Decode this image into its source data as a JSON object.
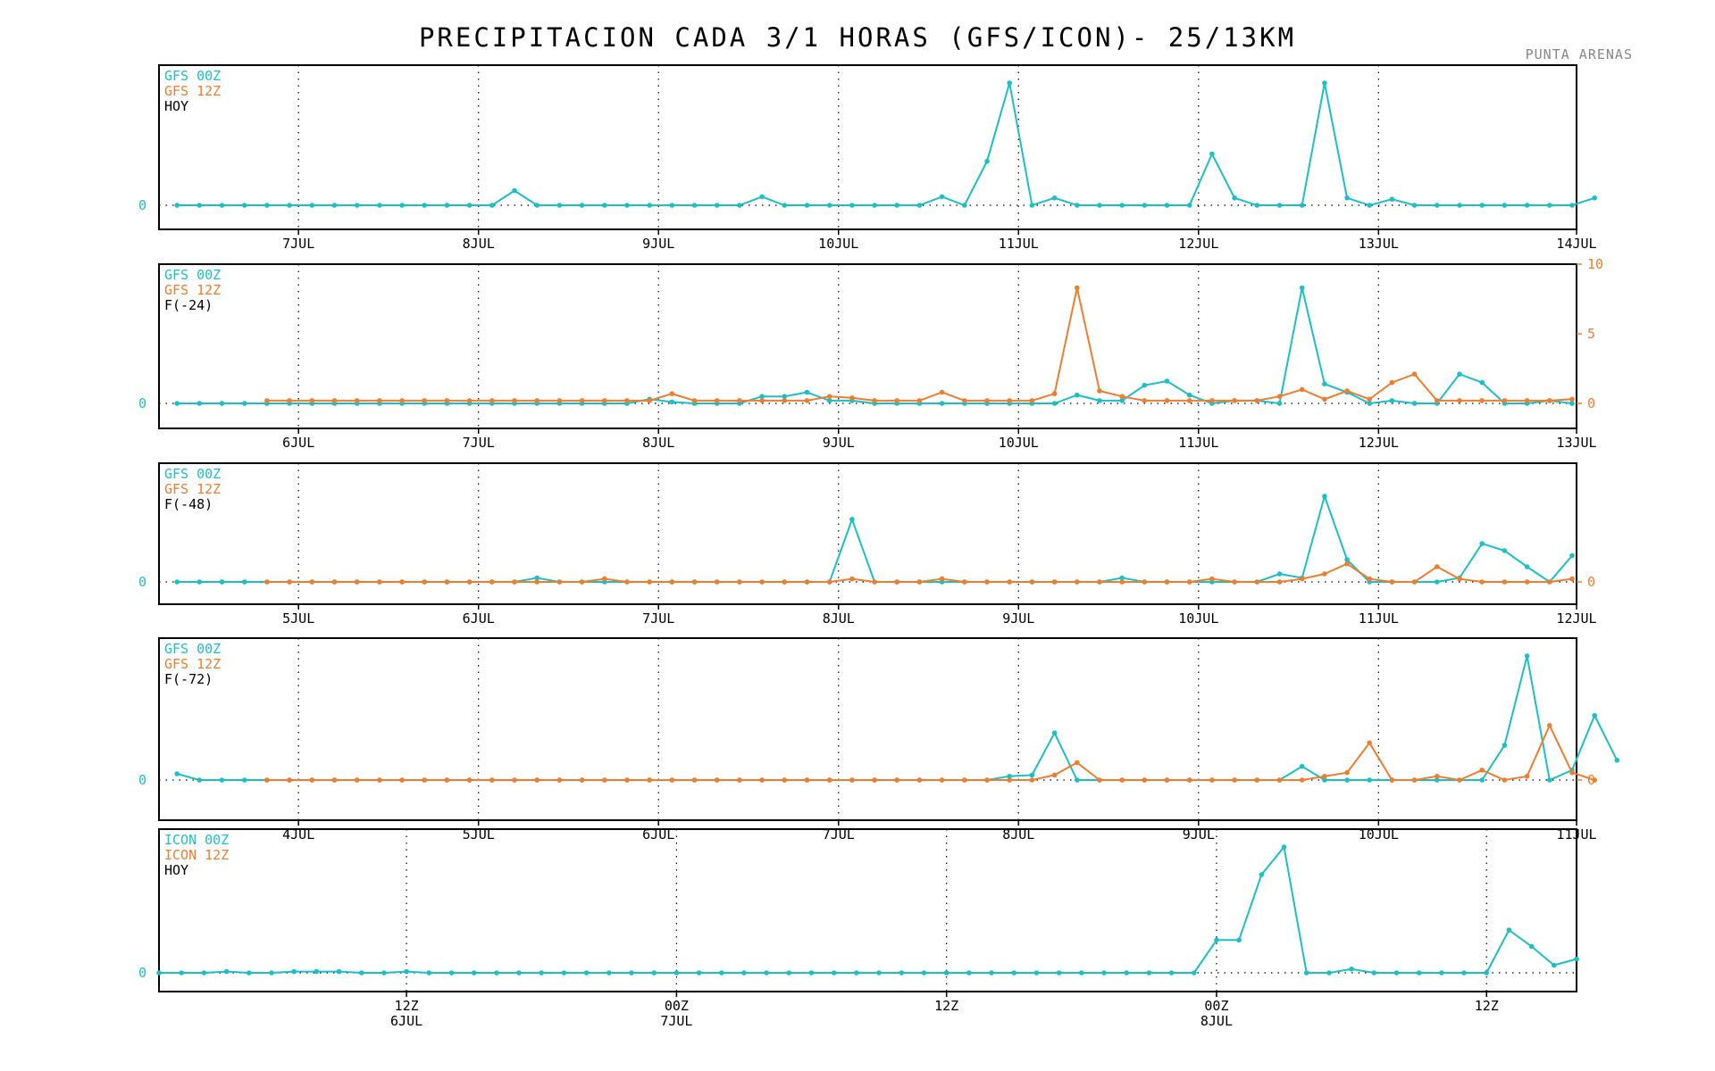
{
  "header": {
    "title": "PRECIPITACION CADA 3/1 HORAS (GFS/ICON)- 25/13KM",
    "location": "PUNTA ARENAS"
  },
  "colors": {
    "series_a": "#1ac0c6",
    "series_b": "#ee7d2d",
    "text": "#000000",
    "axis_frame": "#000000"
  },
  "chart_data": [
    {
      "type": "line",
      "legend": [
        "GFS 00Z",
        "GFS 12Z",
        "HOY"
      ],
      "xlim": [
        0,
        63
      ],
      "ylim": [
        0,
        10
      ],
      "right_axis": false,
      "x_ticks": [
        {
          "x": 6.2,
          "label": "7JUL"
        },
        {
          "x": 14.2,
          "label": "8JUL"
        },
        {
          "x": 22.2,
          "label": "9JUL"
        },
        {
          "x": 30.2,
          "label": "10JUL"
        },
        {
          "x": 38.2,
          "label": "11JUL"
        },
        {
          "x": 46.2,
          "label": "12JUL"
        },
        {
          "x": 54.2,
          "label": "13JUL"
        },
        {
          "x": 63,
          "label": "14JUL"
        }
      ],
      "y_ticks_left": [
        {
          "v": 0,
          "label": "0"
        }
      ],
      "series": [
        {
          "name": "GFS 00Z",
          "start": 0.8,
          "step": 1,
          "values": [
            0,
            0,
            0,
            0,
            0,
            0,
            0,
            0,
            0,
            0,
            0,
            0,
            0,
            0,
            0,
            1.2,
            0,
            0,
            0,
            0,
            0,
            0,
            0,
            0,
            0,
            0,
            0.7,
            0,
            0,
            0,
            0,
            0,
            0,
            0,
            0.7,
            0,
            3.6,
            10,
            0,
            0.6,
            0,
            0,
            0,
            0,
            0,
            0,
            4.2,
            0.6,
            0,
            0,
            0,
            10,
            0.6,
            0,
            0.5,
            0,
            0,
            0,
            0,
            0,
            0,
            0,
            0,
            0.6
          ]
        }
      ]
    },
    {
      "type": "line",
      "legend": [
        "GFS 00Z",
        "GFS 12Z",
        "F(-24)"
      ],
      "xlim": [
        0,
        63
      ],
      "ylim": [
        0,
        10
      ],
      "right_axis": true,
      "x_ticks": [
        {
          "x": 6.2,
          "label": "6JUL"
        },
        {
          "x": 14.2,
          "label": "7JUL"
        },
        {
          "x": 22.2,
          "label": "8JUL"
        },
        {
          "x": 30.2,
          "label": "9JUL"
        },
        {
          "x": 38.2,
          "label": "10JUL"
        },
        {
          "x": 46.2,
          "label": "11JUL"
        },
        {
          "x": 54.2,
          "label": "12JUL"
        },
        {
          "x": 63,
          "label": "13JUL"
        }
      ],
      "y_ticks_left": [
        {
          "v": 0,
          "label": "0"
        }
      ],
      "y_ticks_right": [
        {
          "v": 0,
          "label": "0"
        },
        {
          "v": 5,
          "label": "5"
        },
        {
          "v": 10,
          "label": "10"
        }
      ],
      "series": [
        {
          "name": "GFS 00Z",
          "start": 0.8,
          "step": 1,
          "values": [
            0,
            0,
            0,
            0,
            0,
            0,
            0,
            0,
            0,
            0,
            0,
            0,
            0,
            0,
            0,
            0,
            0,
            0,
            0,
            0,
            0,
            0.3,
            0.1,
            0,
            0,
            0,
            0.5,
            0.5,
            0.8,
            0.2,
            0.2,
            0,
            0,
            0,
            0,
            0,
            0,
            0,
            0,
            0,
            0.6,
            0.2,
            0.2,
            1.3,
            1.6,
            0.6,
            0,
            0.2,
            0.2,
            0,
            8.3,
            1.4,
            0.8,
            0,
            0.2,
            0,
            0,
            2.1,
            1.5,
            0,
            0,
            0.2,
            0
          ]
        },
        {
          "name": "GFS 12Z",
          "start": 4.8,
          "step": 1,
          "values": [
            0.2,
            0.2,
            0.2,
            0.2,
            0.2,
            0.2,
            0.2,
            0.2,
            0.2,
            0.2,
            0.2,
            0.2,
            0.2,
            0.2,
            0.2,
            0.2,
            0.2,
            0.2,
            0.7,
            0.2,
            0.2,
            0.2,
            0.2,
            0.2,
            0.2,
            0.5,
            0.4,
            0.2,
            0.2,
            0.2,
            0.8,
            0.2,
            0.2,
            0.2,
            0.2,
            0.7,
            8.3,
            0.9,
            0.5,
            0.2,
            0.2,
            0.2,
            0.2,
            0.2,
            0.2,
            0.5,
            1,
            0.3,
            0.9,
            0.3,
            1.5,
            2.1,
            0.2,
            0.2,
            0.2,
            0.2,
            0.2,
            0.2,
            0.3
          ]
        }
      ]
    },
    {
      "type": "line",
      "legend": [
        "GFS 00Z",
        "GFS 12Z",
        "F(-48)"
      ],
      "xlim": [
        0,
        63
      ],
      "ylim": [
        0,
        10
      ],
      "right_axis": true,
      "x_ticks": [
        {
          "x": 6.2,
          "label": "5JUL"
        },
        {
          "x": 14.2,
          "label": "6JUL"
        },
        {
          "x": 22.2,
          "label": "7JUL"
        },
        {
          "x": 30.2,
          "label": "8JUL"
        },
        {
          "x": 38.2,
          "label": "9JUL"
        },
        {
          "x": 46.2,
          "label": "10JUL"
        },
        {
          "x": 54.2,
          "label": "11JUL"
        },
        {
          "x": 63,
          "label": "12JUL"
        }
      ],
      "y_ticks_left": [
        {
          "v": 0,
          "label": "0"
        }
      ],
      "y_ticks_right": [
        {
          "v": 0,
          "label": "0"
        }
      ],
      "series": [
        {
          "name": "GFS 00Z",
          "start": 0.8,
          "step": 1,
          "values": [
            0,
            0,
            0,
            0,
            0,
            0,
            0,
            0,
            0,
            0,
            0,
            0,
            0,
            0,
            0,
            0,
            0.4,
            0,
            0,
            0,
            0,
            0,
            0,
            0,
            0,
            0,
            0,
            0,
            0,
            0,
            6.2,
            0,
            0,
            0,
            0,
            0,
            0,
            0,
            0,
            0,
            0,
            0,
            0.4,
            0,
            0,
            0,
            0,
            0,
            0,
            0.8,
            0.4,
            8.5,
            2.2,
            0,
            0,
            0,
            0,
            0.4,
            3.8,
            3.1,
            1.5,
            0,
            2.6
          ]
        },
        {
          "name": "GFS 12Z",
          "start": 4.8,
          "step": 1,
          "values": [
            0,
            0,
            0,
            0,
            0,
            0,
            0,
            0,
            0,
            0,
            0,
            0,
            0,
            0,
            0,
            0.3,
            0,
            0,
            0,
            0,
            0,
            0,
            0,
            0,
            0,
            0,
            0.3,
            0,
            0,
            0,
            0.3,
            0,
            0,
            0,
            0,
            0,
            0,
            0,
            0,
            0,
            0,
            0,
            0.3,
            0,
            0,
            0,
            0.3,
            0.8,
            1.8,
            0.3,
            0,
            0,
            1.5,
            0.3,
            0,
            0,
            0,
            0,
            0.3
          ]
        }
      ]
    },
    {
      "type": "line",
      "legend": [
        "GFS 00Z",
        "GFS 12Z",
        "F(-72)"
      ],
      "xlim": [
        0,
        63
      ],
      "ylim": [
        0,
        10
      ],
      "right_axis": true,
      "x_ticks": [
        {
          "x": 6.2,
          "label": "4JUL"
        },
        {
          "x": 14.2,
          "label": "5JUL"
        },
        {
          "x": 22.2,
          "label": "6JUL"
        },
        {
          "x": 30.2,
          "label": "7JUL"
        },
        {
          "x": 38.2,
          "label": "8JUL"
        },
        {
          "x": 46.2,
          "label": "9JUL"
        },
        {
          "x": 54.2,
          "label": "10JUL"
        },
        {
          "x": 63,
          "label": "11JUL"
        }
      ],
      "y_ticks_left": [
        {
          "v": 0,
          "label": "0"
        }
      ],
      "y_ticks_right": [
        {
          "v": 0,
          "label": "0"
        }
      ],
      "series": [
        {
          "name": "GFS 00Z",
          "start": 0.8,
          "step": 1,
          "values": [
            0.5,
            0,
            0,
            0,
            0,
            0,
            0,
            0,
            0,
            0,
            0,
            0,
            0,
            0,
            0,
            0,
            0,
            0,
            0,
            0,
            0,
            0,
            0,
            0,
            0,
            0,
            0,
            0,
            0,
            0,
            0,
            0,
            0,
            0,
            0,
            0,
            0,
            0.3,
            0.4,
            3.8,
            0,
            0,
            0,
            0,
            0,
            0,
            0,
            0,
            0,
            0,
            1.1,
            0,
            0,
            0,
            0,
            0,
            0,
            0,
            0,
            2.8,
            10,
            0,
            0.8,
            5.2,
            1.6
          ]
        },
        {
          "name": "GFS 12Z",
          "start": 4.8,
          "step": 1,
          "values": [
            0,
            0,
            0,
            0,
            0,
            0,
            0,
            0,
            0,
            0,
            0,
            0,
            0,
            0,
            0,
            0,
            0,
            0,
            0,
            0,
            0,
            0,
            0,
            0,
            0,
            0,
            0,
            0,
            0,
            0,
            0,
            0,
            0,
            0,
            0,
            0.4,
            1.4,
            0,
            0,
            0,
            0,
            0,
            0,
            0,
            0,
            0,
            0,
            0.3,
            0.6,
            3,
            0,
            0,
            0.3,
            0,
            0.8,
            0,
            0.3,
            4.4,
            0.6,
            0
          ]
        }
      ]
    },
    {
      "type": "line",
      "legend": [
        "ICON 00Z",
        "ICON 12Z",
        "HOY"
      ],
      "xlim": [
        0,
        63
      ],
      "ylim": [
        0,
        10
      ],
      "right_axis": false,
      "x_ticks": [
        {
          "x": 11,
          "label": "12Z",
          "label2": "6JUL"
        },
        {
          "x": 23,
          "label": "00Z",
          "label2": "7JUL"
        },
        {
          "x": 35,
          "label": "12Z"
        },
        {
          "x": 47,
          "label": "00Z",
          "label2": "8JUL"
        },
        {
          "x": 59,
          "label": "12Z"
        }
      ],
      "y_ticks_left": [
        {
          "v": 0,
          "label": "0"
        }
      ],
      "series": [
        {
          "name": "ICON 00Z",
          "start": 0,
          "step": 1,
          "values": [
            0,
            0,
            0,
            0.1,
            0,
            0,
            0.1,
            0.1,
            0.1,
            0,
            0,
            0.1,
            0,
            0,
            0,
            0,
            0,
            0,
            0,
            0,
            0,
            0,
            0,
            0,
            0,
            0,
            0,
            0,
            0,
            0,
            0,
            0,
            0,
            0,
            0,
            0,
            0,
            0,
            0,
            0,
            0,
            0,
            0,
            0,
            0,
            0,
            0,
            2.6,
            2.6,
            7.8,
            10,
            0,
            0,
            0.3,
            0,
            0,
            0,
            0,
            0,
            0,
            3.4,
            2.1,
            0.6,
            1.1
          ]
        }
      ]
    }
  ]
}
